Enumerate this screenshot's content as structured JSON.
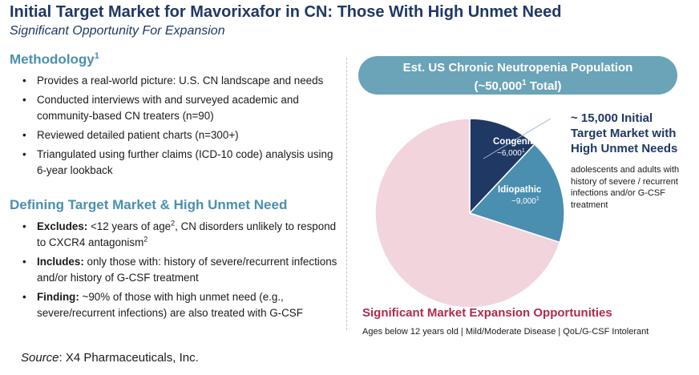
{
  "header": {
    "title": "Initial Target Market for Mavorixafor in CN: Those With High Unmet Need",
    "subtitle": "Significant Opportunity For Expansion"
  },
  "methodology": {
    "heading": "Methodology",
    "heading_sup": "1",
    "bullets": [
      "Provides a real-world picture: U.S. CN landscape and needs",
      "Conducted interviews with and surveyed academic and community-based CN treaters (n=90)",
      "Reviewed detailed patient charts (n=300+)",
      "Triangulated using further claims (ICD-10 code) analysis using 6-year lookback"
    ]
  },
  "defining": {
    "heading": "Defining Target Market & High Unmet Need",
    "bullets": [
      {
        "label": "Excludes:",
        "text_a": " <12 years of age",
        "sup_a": "2",
        "text_b": ", CN disorders unlikely to respond to CXCR4 antagonism",
        "sup_b": "2"
      },
      {
        "label": "Includes:",
        "text_a": " only those with: history of severe/recurrent infections and/or history of G-CSF treatment",
        "sup_a": "",
        "text_b": "",
        "sup_b": ""
      },
      {
        "label": "Finding:",
        "text_a": " ~90% of those with high unmet need (e.g., severe/recurrent infections) are also treated with G-CSF",
        "sup_a": "",
        "text_b": "",
        "sup_b": ""
      }
    ]
  },
  "population_banner": {
    "line1": "Est. US Chronic Neutropenia Population",
    "line2_pre": "(~50,000",
    "line2_sup": "1",
    "line2_post": " Total)"
  },
  "chart_data": {
    "type": "pie",
    "slices": [
      {
        "label": "Congenital",
        "value_text": "~6,000",
        "value_sup": "1",
        "value": 6000,
        "color": "#1f3864"
      },
      {
        "label": "Idiopathic",
        "value_text": "~9,000",
        "value_sup": "1",
        "value": 9000,
        "color": "#4a8fb0"
      },
      {
        "label": "",
        "value": 35000,
        "color": "#f2d4dd"
      }
    ]
  },
  "target": {
    "heading_lines": [
      "~ 15,000 Initial",
      "Target Market with",
      "High Unmet Needs"
    ],
    "description": "adolescents and adults with history of severe / recurrent infections and/or G-CSF treatment"
  },
  "expansion": {
    "heading": "Significant Market Expansion Opportunities",
    "subtitle": "Ages below 12 years old | Mild/Moderate Disease | QoL/G-CSF Intolerant"
  },
  "source": {
    "label": "Source",
    "text": ": X4 Pharmaceuticals, Inc."
  }
}
